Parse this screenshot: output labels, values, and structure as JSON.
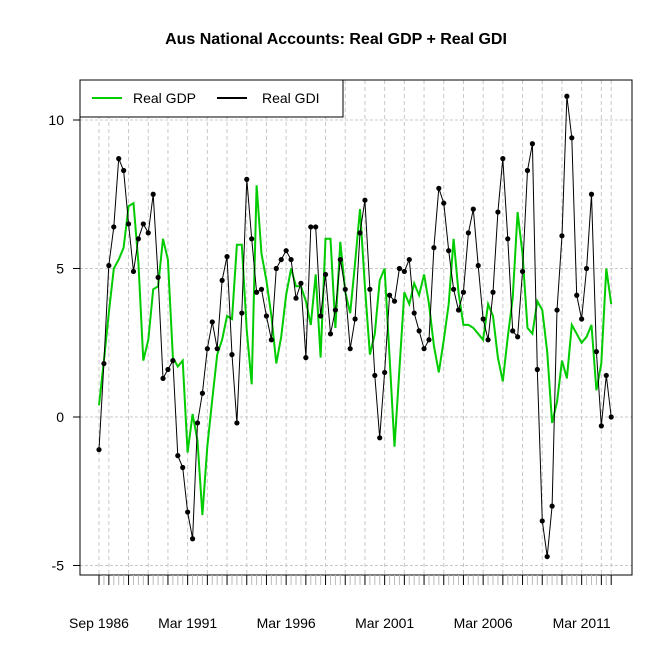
{
  "chart_data": {
    "type": "line",
    "title": "Aus National Accounts: Real GDP + Real GDI",
    "xlabel": "",
    "ylabel": "",
    "ylim": [
      -5.5,
      11.5
    ],
    "yticks": [
      -5,
      0,
      5,
      10
    ],
    "xtick_labels": [
      "Sep 1986",
      "Mar 1991",
      "Mar 1996",
      "Mar 2001",
      "Mar 2006",
      "Mar 2011"
    ],
    "grid": true,
    "legend_position": "top-left",
    "frequency": "quarterly",
    "x_start": "Sep 1986",
    "x_end": "Sep 2012",
    "series": [
      {
        "name": "Real GDP",
        "color": "#00cc00",
        "line_width": 2,
        "markers": false,
        "values": [
          0.4,
          1.9,
          3.5,
          5.0,
          5.3,
          5.7,
          7.1,
          7.2,
          5.2,
          1.9,
          2.6,
          4.3,
          4.4,
          6.0,
          5.3,
          2.0,
          1.7,
          1.9,
          -1.2,
          0.1,
          -0.8,
          -3.3,
          -1.0,
          0.6,
          2.1,
          2.6,
          3.4,
          3.3,
          5.8,
          5.8,
          2.9,
          1.1,
          7.8,
          5.5,
          4.6,
          3.4,
          1.8,
          2.7,
          4.1,
          5.0,
          4.4,
          4.4,
          3.9,
          3.1,
          4.8,
          2.0,
          6.0,
          6.0,
          3.0,
          5.9,
          4.2,
          3.5,
          5.2,
          7.0,
          4.4,
          2.1,
          2.8,
          4.6,
          5.0,
          2.0,
          -1.0,
          1.6,
          4.2,
          3.8,
          4.5,
          4.1,
          4.8,
          3.8,
          2.4,
          1.5,
          2.6,
          3.8,
          6.0,
          4.2,
          3.1,
          3.1,
          3.0,
          2.8,
          2.6,
          3.8,
          3.4,
          2.0,
          1.2,
          2.7,
          4.0,
          6.9,
          5.5,
          3.0,
          2.8,
          3.9,
          3.6,
          2.2,
          -0.2,
          0.5,
          1.9,
          1.3,
          3.1,
          2.8,
          2.5,
          2.7,
          3.1,
          0.9,
          1.8,
          5.0,
          3.8
        ]
      },
      {
        "name": "Real GDI",
        "color": "#000000",
        "line_width": 1,
        "markers": true,
        "values": [
          -1.1,
          1.8,
          5.1,
          6.4,
          8.7,
          8.3,
          6.5,
          4.9,
          6.0,
          6.5,
          6.2,
          7.5,
          4.7,
          1.3,
          1.6,
          1.9,
          -1.3,
          -1.7,
          -3.2,
          -4.1,
          -0.2,
          0.8,
          2.3,
          3.2,
          2.3,
          4.6,
          5.4,
          2.1,
          -0.2,
          3.5,
          8.0,
          6.0,
          4.2,
          4.3,
          3.4,
          2.6,
          5.0,
          5.3,
          5.6,
          5.3,
          4.0,
          4.5,
          2.0,
          6.4,
          6.4,
          3.4,
          4.8,
          2.8,
          3.6,
          5.3,
          4.3,
          2.3,
          3.3,
          6.2,
          7.3,
          4.3,
          1.4,
          -0.7,
          1.5,
          4.1,
          3.9,
          5.0,
          4.9,
          5.3,
          3.5,
          2.9,
          2.3,
          2.6,
          5.7,
          7.7,
          7.2,
          5.6,
          4.3,
          3.6,
          4.2,
          6.2,
          7.0,
          5.1,
          3.3,
          2.6,
          4.2,
          6.9,
          8.7,
          6.0,
          2.9,
          2.7,
          4.9,
          8.3,
          9.2,
          1.6,
          -3.5,
          -4.7,
          -3.0,
          3.6,
          6.1,
          10.8,
          9.4,
          4.1,
          3.3,
          5.0,
          7.5,
          2.2,
          -0.3,
          1.4,
          0.0
        ]
      }
    ]
  },
  "legend": {
    "items": [
      {
        "label": "Real GDP",
        "color": "#00cc00"
      },
      {
        "label": "Real GDI",
        "color": "#000000"
      }
    ]
  }
}
